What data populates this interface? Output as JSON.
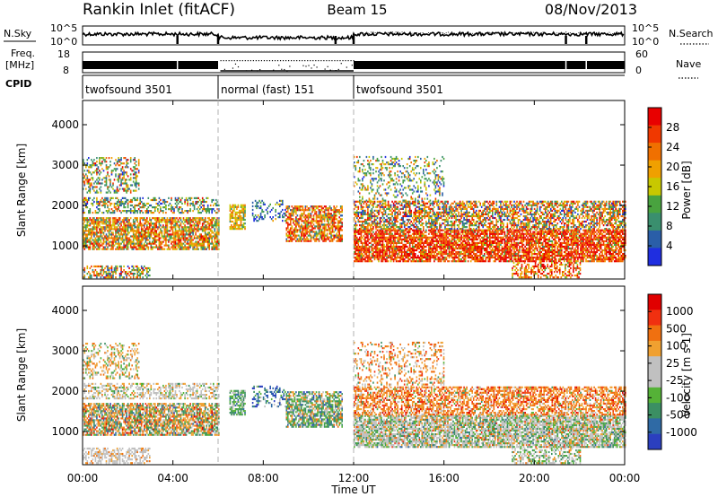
{
  "header": {
    "title": "Rankin Inlet (fitACF)",
    "beam": "Beam 15",
    "date": "08/Nov/2013"
  },
  "strips": {
    "nsky_label": "N.Sky",
    "nsky_ticks": [
      "10^5",
      "10^0"
    ],
    "nsearch_label": "N.Search",
    "nsearch_ticks": [
      "10^5",
      "10^0"
    ],
    "freq_label": "Freq.",
    "freq_unit": "[MHz]",
    "freq_ticks": [
      "18",
      "8"
    ],
    "nave_label": "Nave",
    "nave_ticks": [
      "60",
      "0"
    ],
    "cpid_label": "CPID",
    "cpid_segments": [
      {
        "start_hour": 0,
        "end_hour": 6,
        "label": "twofsound 3501"
      },
      {
        "start_hour": 6,
        "end_hour": 12,
        "label": "normal (fast) 151"
      },
      {
        "start_hour": 12,
        "end_hour": 24,
        "label": "twofsound 3501"
      }
    ]
  },
  "colors": {
    "power_scale": [
      "#1f2ee0",
      "#2a5ea8",
      "#3a8f6e",
      "#49a33f",
      "#c8c800",
      "#f0a000",
      "#f07000",
      "#f03800",
      "#e80000"
    ],
    "velocity_scale": [
      "#2b3fbf",
      "#2f6aa5",
      "#3b8f63",
      "#55b237",
      "#c0c0c0",
      "#c0c0c0",
      "#f0a030",
      "#f07010",
      "#f03010",
      "#e00000"
    ],
    "gridline": "#b0b0b0"
  },
  "chart_data": [
    {
      "type": "heatmap",
      "panel": "power",
      "xlabel": "",
      "ylabel": "Slant Range [km]",
      "xlim": [
        0,
        24
      ],
      "ylim": [
        180,
        4600
      ],
      "yticks": [
        1000,
        2000,
        3000,
        4000
      ],
      "xticks": [
        0,
        4,
        8,
        12,
        16,
        20,
        24
      ],
      "colorbar": {
        "label": "Power [dB]",
        "range": [
          0,
          32
        ],
        "ticks": [
          "4",
          "8",
          "12",
          "16",
          "20",
          "24",
          "28"
        ]
      },
      "dashed_verticals_hours": [
        6,
        12
      ]
    },
    {
      "type": "heatmap",
      "panel": "velocity",
      "xlabel": "Time UT",
      "ylabel": "Slant Range [km]",
      "xlim": [
        0,
        24
      ],
      "ylim": [
        180,
        4600
      ],
      "yticks": [
        1000,
        2000,
        3000,
        4000
      ],
      "xticks": [
        0,
        4,
        8,
        12,
        16,
        20,
        24
      ],
      "xtick_labels": [
        "00:00",
        "04:00",
        "08:00",
        "12:00",
        "16:00",
        "20:00",
        "00:00"
      ],
      "colorbar": {
        "label": "Velocity [m s-1]",
        "ticks": [
          "1000",
          "500",
          "100",
          "25",
          "-25",
          "-100",
          "-500",
          "-1000"
        ]
      },
      "dashed_verticals_hours": [
        6,
        12
      ]
    }
  ]
}
